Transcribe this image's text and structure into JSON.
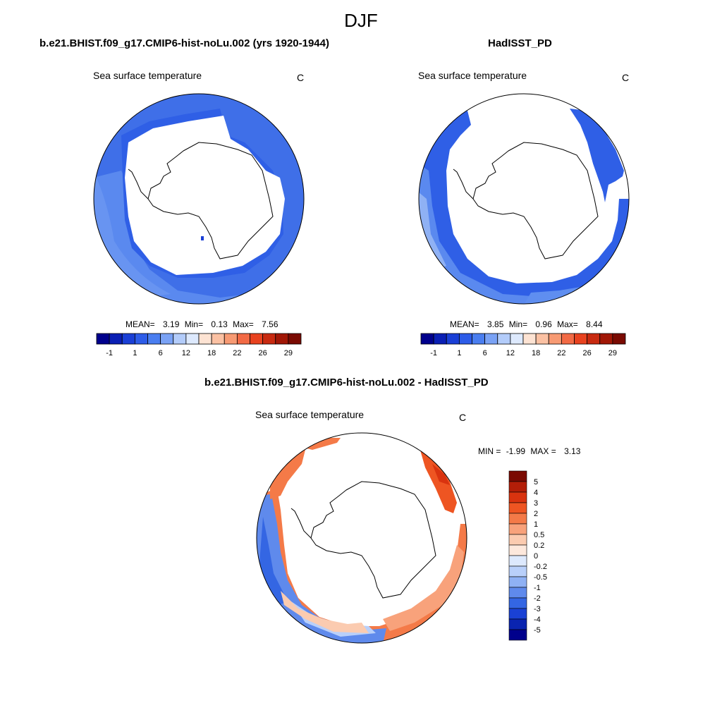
{
  "figure": {
    "title": "DJF"
  },
  "panels": [
    {
      "id": "model",
      "title": "b.e21.BHIST.f09_g17.CMIP6-hist-noLu.002 (yrs 1920-1944)",
      "subtitle": "Sea surface temperature",
      "units": "C",
      "stats": {
        "mean_label": "MEAN=",
        "mean": "3.19",
        "min_label": "Min=",
        "min": "0.13",
        "max_label": "Max=",
        "max": "7.56"
      }
    },
    {
      "id": "obs",
      "title": "HadISST_PD",
      "subtitle": "Sea surface temperature",
      "units": "C",
      "stats": {
        "mean_label": "MEAN=",
        "mean": "3.85",
        "min_label": "Min=",
        "min": "0.96",
        "max_label": "Max=",
        "max": "8.44"
      }
    },
    {
      "id": "diff",
      "title": "b.e21.BHIST.f09_g17.CMIP6-hist-noLu.002 - HadISST_PD",
      "subtitle": "Sea surface temperature",
      "units": "C",
      "stats": {
        "min_label": "MIN =",
        "min": "-1.99",
        "max_label": "MAX =",
        "max": "3.13"
      }
    }
  ],
  "colorbar_sst": {
    "tick_labels": [
      "-1",
      "1",
      "6",
      "12",
      "18",
      "22",
      "26",
      "29"
    ],
    "colors": [
      "#00008c",
      "#0a1fb4",
      "#1a3fd6",
      "#2d5ce8",
      "#4a7ef0",
      "#7aa2f5",
      "#b3ccfa",
      "#dde9fd",
      "#fde3d3",
      "#fbc1a3",
      "#f79a73",
      "#f26a45",
      "#e8421f",
      "#c82a10",
      "#a11706",
      "#7a0a02"
    ]
  },
  "colorbar_diff": {
    "tick_labels": [
      "5",
      "4",
      "3",
      "2",
      "1",
      "0.5",
      "0.2",
      "0",
      "-0.2",
      "-0.5",
      "-1",
      "-2",
      "-3",
      "-4",
      "-5"
    ],
    "colors": [
      "#7a0a02",
      "#b31e08",
      "#d9330f",
      "#ee5522",
      "#f47a48",
      "#f8a27b",
      "#fbcbb0",
      "#fde8dc",
      "#dde9fd",
      "#b9d0fa",
      "#8fb1f4",
      "#5f8aec",
      "#3466e3",
      "#1a41d4",
      "#0a24b0",
      "#00008c"
    ]
  },
  "chart_data": [
    {
      "type": "heatmap",
      "title": "b.e21.BHIST.f09_g17.CMIP6-hist-noLu.002 (yrs 1920-1944)",
      "variable": "Sea surface temperature",
      "units": "C",
      "projection": "south-polar stereographic",
      "colorbar_ticks": [
        -1,
        1,
        6,
        12,
        18,
        22,
        26,
        29
      ],
      "mean": 3.19,
      "min": 0.13,
      "max": 7.56
    },
    {
      "type": "heatmap",
      "title": "HadISST_PD",
      "variable": "Sea surface temperature",
      "units": "C",
      "projection": "south-polar stereographic",
      "colorbar_ticks": [
        -1,
        1,
        6,
        12,
        18,
        22,
        26,
        29
      ],
      "mean": 3.85,
      "min": 0.96,
      "max": 8.44
    },
    {
      "type": "heatmap",
      "title": "b.e21.BHIST.f09_g17.CMIP6-hist-noLu.002 - HadISST_PD",
      "variable": "Sea surface temperature",
      "units": "C",
      "projection": "south-polar stereographic",
      "colorbar_ticks": [
        5,
        4,
        3,
        2,
        1,
        0.5,
        0.2,
        0,
        -0.2,
        -0.5,
        -1,
        -2,
        -3,
        -4,
        -5
      ],
      "min": -1.99,
      "max": 3.13
    }
  ]
}
